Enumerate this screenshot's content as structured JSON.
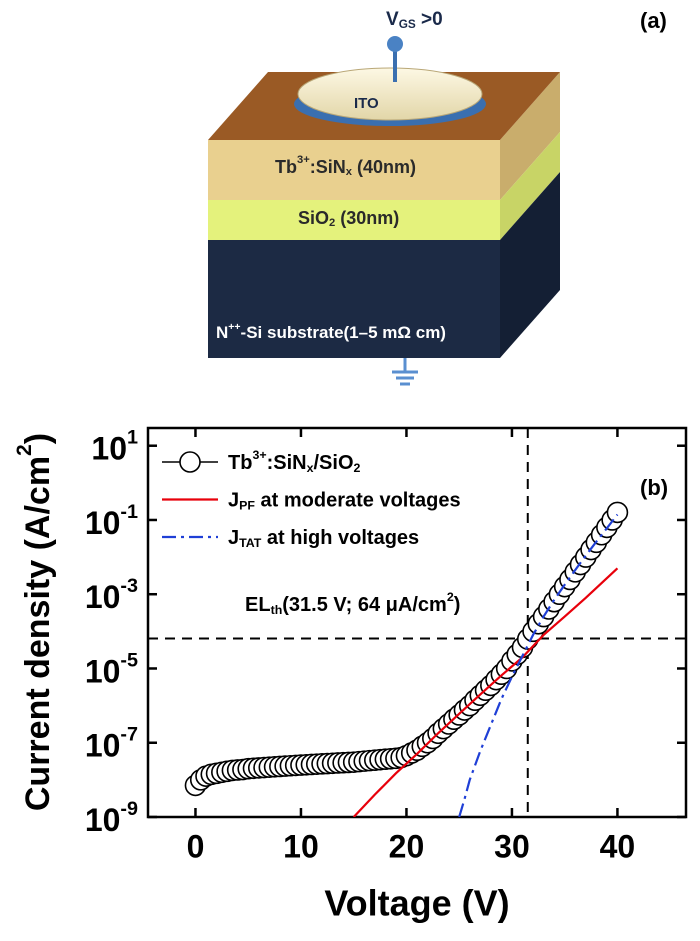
{
  "diagram": {
    "label": "(a)",
    "gate_voltage": [
      "V",
      {
        "sub": "GS"
      },
      " >0"
    ],
    "electrode": "ITO",
    "layers": [
      [
        "Tb",
        {
          "sup": "3+"
        },
        ":SiN",
        {
          "sub": "x"
        },
        " (40nm)"
      ],
      [
        "SiO",
        {
          "sub": "2"
        },
        " (30nm)"
      ],
      [
        "N",
        {
          "sup": "++"
        },
        "-Si substrate(1–5 mΩ cm)"
      ]
    ]
  },
  "chart_data": {
    "type": "line",
    "panel_label": "(b)",
    "xlabel": "Voltage (V)",
    "ylabel": [
      "Current density (A/cm",
      {
        "sup": "2"
      },
      ")"
    ],
    "log_y": true,
    "legend": "upper left",
    "xlim": [
      -4.5,
      46.5
    ],
    "xticks": [
      0,
      10,
      20,
      30,
      40
    ],
    "ylim": [
      1e-09,
      30
    ],
    "yticks": [
      {
        "value": 1e-09,
        "label": [
          "10",
          {
            "sup": "-9"
          }
        ]
      },
      {
        "value": 1e-07,
        "label": [
          "10",
          {
            "sup": "-7"
          }
        ]
      },
      {
        "value": 1e-05,
        "label": [
          "10",
          {
            "sup": "-5"
          }
        ]
      },
      {
        "value": 0.001,
        "label": [
          "10",
          {
            "sup": "-3"
          }
        ]
      },
      {
        "value": 0.1,
        "label": [
          "10",
          {
            "sup": "-1"
          }
        ]
      },
      {
        "value": 10,
        "label": [
          "10",
          {
            "sup": "1"
          }
        ]
      }
    ],
    "reference_lines": {
      "x": 31.5,
      "y": 6.4e-05
    },
    "annotation": [
      "EL",
      {
        "sub": "th"
      },
      "(31.5 V; 64 μA/cm",
      {
        "sup": "2"
      },
      ")"
    ],
    "series": [
      {
        "name": [
          "Tb",
          {
            "sup": "3+"
          },
          ":SiN",
          {
            "sub": "x"
          },
          "/SiO",
          {
            "sub": "2"
          }
        ],
        "style": "markers",
        "color": "#000000",
        "x": [
          0,
          0.5,
          1,
          1.5,
          2,
          2.5,
          3,
          3.5,
          4,
          4.5,
          5,
          5.5,
          6,
          6.5,
          7,
          7.5,
          8,
          8.5,
          9,
          9.5,
          10,
          10.5,
          11,
          11.5,
          12,
          12.5,
          13,
          13.5,
          14,
          14.5,
          15,
          15.5,
          16,
          16.5,
          17,
          17.5,
          18,
          18.5,
          19,
          19.5,
          20,
          20.5,
          21,
          21.5,
          22,
          22.5,
          23,
          23.5,
          24,
          24.5,
          25,
          25.5,
          26,
          26.5,
          27,
          27.5,
          28,
          28.5,
          29,
          29.5,
          30,
          30.5,
          31,
          31.5,
          32,
          32.5,
          33,
          33.5,
          34,
          34.5,
          35,
          35.5,
          36,
          36.5,
          37,
          37.5,
          38,
          38.5,
          39,
          39.5,
          40
        ],
        "values": [
          7.1e-09,
          1e-08,
          1.26e-08,
          1.41e-08,
          1.5e-08,
          1.6e-08,
          1.7e-08,
          1.8e-08,
          1.85e-08,
          1.9e-08,
          2e-08,
          2.05e-08,
          2.1e-08,
          2.15e-08,
          2.2e-08,
          2.25e-08,
          2.3e-08,
          2.35e-08,
          2.4e-08,
          2.45e-08,
          2.5e-08,
          2.55e-08,
          2.6e-08,
          2.65e-08,
          2.7e-08,
          2.75e-08,
          2.8e-08,
          2.85e-08,
          2.9e-08,
          2.95e-08,
          3e-08,
          3.1e-08,
          3.2e-08,
          3.3e-08,
          3.4e-08,
          3.5e-08,
          3.6e-08,
          3.7e-08,
          3.8e-08,
          4e-08,
          4.5e-08,
          5.3e-08,
          6.3e-08,
          8e-08,
          1e-07,
          1.3e-07,
          1.8e-07,
          2.4e-07,
          3.2e-07,
          4.3e-07,
          5.6e-07,
          7.6e-07,
          1e-06,
          1.4e-06,
          1.9e-06,
          2.6e-06,
          3.5e-06,
          5e-06,
          7e-06,
          1e-05,
          1.6e-05,
          2.4e-05,
          3.7e-05,
          6.2e-05,
          0.0001,
          0.00016,
          0.00025,
          0.0004,
          0.00063,
          0.001,
          0.0016,
          0.0025,
          0.004,
          0.0063,
          0.01,
          0.016,
          0.025,
          0.04,
          0.063,
          0.1,
          0.16
        ]
      },
      {
        "name": [
          "J",
          {
            "sub": "PF"
          },
          " at moderate voltages"
        ],
        "style": "solid",
        "color": "#e8000b",
        "x": [
          15,
          17,
          19,
          21,
          23,
          25,
          27,
          29,
          31,
          33,
          35,
          37,
          38.5,
          40
        ],
        "values": [
          1e-09,
          4e-09,
          1.5e-08,
          5e-08,
          1.8e-07,
          6e-07,
          2e-06,
          6.5e-06,
          2e-05,
          8e-05,
          0.00025,
          0.0008,
          0.002,
          0.005
        ]
      },
      {
        "name": [
          "J",
          {
            "sub": "TAT"
          },
          " at high voltages"
        ],
        "style": "dash-dot",
        "color": "#1f3fd6",
        "x": [
          25,
          25.5,
          26,
          27,
          28,
          29,
          30,
          31,
          32,
          33,
          34,
          35,
          36,
          37,
          38,
          39,
          40
        ],
        "values": [
          1e-09,
          3e-09,
          1e-08,
          6e-08,
          3e-07,
          1.5e-06,
          6e-06,
          2.2e-05,
          8e-05,
          0.00025,
          0.0007,
          0.0018,
          0.0045,
          0.011,
          0.026,
          0.06,
          0.14
        ]
      }
    ]
  }
}
